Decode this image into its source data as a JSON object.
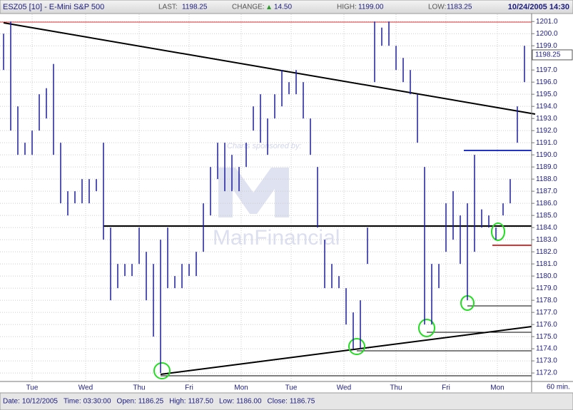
{
  "header": {
    "symbol": "ESZ05 [10] - E-Mini S&P 500",
    "last_label": "LAST:",
    "last": "1198.25",
    "change_label": "CHANGE:",
    "change": "14.50",
    "high_label": "HIGH:",
    "high": "1199.00",
    "low_label": "LOW:",
    "low": "1183.25",
    "datetime": "10/24/2005 14:30"
  },
  "watermark": {
    "line1": "Charts sponsored by:",
    "line2": "ManFinancial"
  },
  "chart_data": {
    "type": "ohlc",
    "color": "#1c1c9e",
    "interval": "60 min.",
    "grid": true,
    "x": [
      0,
      1,
      2,
      3,
      4,
      5,
      6,
      7,
      8,
      9,
      10,
      11,
      12,
      13,
      14,
      15,
      16,
      17,
      18,
      19,
      20,
      21,
      22,
      23,
      24,
      25,
      26,
      27,
      28,
      29,
      30,
      31,
      32,
      33,
      34,
      35,
      36,
      37,
      38,
      39,
      40,
      41,
      42,
      43,
      44,
      45,
      46,
      47,
      48,
      49,
      50,
      51,
      52,
      53,
      54,
      55,
      56,
      57,
      58,
      59,
      60,
      61,
      62,
      63,
      64,
      65,
      66,
      67,
      68,
      69,
      70,
      71,
      72,
      73
    ],
    "series": [
      {
        "name": "High",
        "values": [
          1200,
          1201,
          1194,
          1191,
          1192,
          1195,
          1195.5,
          1197.5,
          1191,
          1187,
          1187,
          1188,
          1188,
          1188,
          1191,
          1184,
          1181,
          1181,
          1181,
          1184,
          1182,
          1181,
          1183,
          1184,
          1180,
          1181,
          1181,
          1182,
          1186,
          1189,
          1191,
          1191,
          1190,
          1189,
          1191,
          1194,
          1195,
          1193,
          1195,
          1197,
          1196,
          1197,
          1196,
          1193,
          1189,
          1183,
          1181,
          1180,
          1179,
          1177,
          1178,
          1184,
          1201,
          1200.5,
          1201,
          1199,
          1198,
          1197,
          1195,
          1189,
          1181,
          1181,
          1186,
          1187,
          1185,
          1186,
          1190,
          1185.5,
          1185,
          1184,
          1186,
          1188,
          1194,
          1199
        ]
      },
      {
        "name": "Low",
        "values": [
          1197,
          1192,
          1190,
          1190,
          1190,
          1192,
          1193,
          1190,
          1186,
          1185,
          1186,
          1186,
          1186,
          1187,
          1183,
          1178,
          1179,
          1180,
          1180,
          1181,
          1178,
          1175,
          1172,
          1179,
          1179,
          1179,
          1180,
          1180,
          1182,
          1185,
          1188,
          1187,
          1187,
          1187,
          1189,
          1192,
          1191,
          1190,
          1193,
          1194,
          1195,
          1195,
          1193,
          1190,
          1184,
          1179,
          1179,
          1179,
          1176,
          1174,
          1174,
          1181,
          1196,
          1199,
          1199,
          1197,
          1196,
          1195,
          1191,
          1176,
          1176,
          1179,
          1182,
          1183,
          1181,
          1178,
          1182,
          1184,
          1184,
          1183,
          1185,
          1186,
          1191,
          1196
        ]
      }
    ],
    "xlim": [
      -0.5,
      74
    ],
    "xticks": [
      {
        "value": 4,
        "label": "Tue"
      },
      {
        "value": 11.5,
        "label": "Wed"
      },
      {
        "value": 19,
        "label": "Thu"
      },
      {
        "value": 26,
        "label": "Fri"
      },
      {
        "value": 33.3,
        "label": "Mon"
      },
      {
        "value": 40.3,
        "label": "Tue"
      },
      {
        "value": 47.7,
        "label": "Wed"
      },
      {
        "value": 55,
        "label": "Thu"
      },
      {
        "value": 62,
        "label": "Fri"
      },
      {
        "value": 69.2,
        "label": "Mon"
      }
    ],
    "ylim": [
      1171.3,
      1201.6
    ],
    "yticks": [
      {
        "value": 1172,
        "label": "1172.0"
      },
      {
        "value": 1173,
        "label": "1173.0"
      },
      {
        "value": 1174,
        "label": "1174.0"
      },
      {
        "value": 1175,
        "label": "1175.0"
      },
      {
        "value": 1176,
        "label": "1176.0"
      },
      {
        "value": 1177,
        "label": "1177.0"
      },
      {
        "value": 1178,
        "label": "1178.0"
      },
      {
        "value": 1179,
        "label": "1179.0"
      },
      {
        "value": 1180,
        "label": "1180.0"
      },
      {
        "value": 1181,
        "label": "1181.0"
      },
      {
        "value": 1182,
        "label": "1182.0"
      },
      {
        "value": 1183,
        "label": "1183.0"
      },
      {
        "value": 1184,
        "label": "1184.0"
      },
      {
        "value": 1185,
        "label": "1185.0"
      },
      {
        "value": 1186,
        "label": "1186.0"
      },
      {
        "value": 1187,
        "label": "1187.0"
      },
      {
        "value": 1188,
        "label": "1188.0"
      },
      {
        "value": 1189,
        "label": "1189.0"
      },
      {
        "value": 1190,
        "label": "1190.0"
      },
      {
        "value": 1191,
        "label": "1191.0"
      },
      {
        "value": 1192,
        "label": "1192.0"
      },
      {
        "value": 1193,
        "label": "1193.0"
      },
      {
        "value": 1194,
        "label": "1194.0"
      },
      {
        "value": 1195,
        "label": "1195.0"
      },
      {
        "value": 1196,
        "label": "1196.0"
      },
      {
        "value": 1197,
        "label": "1197.0"
      },
      {
        "value": 1198,
        "label": "1198.0"
      },
      {
        "value": 1199,
        "label": "1199.0"
      },
      {
        "value": 1200,
        "label": "1200.0"
      },
      {
        "value": 1201,
        "label": "1201.0"
      }
    ],
    "last_price": 1198.25
  },
  "footer": {
    "date_label": "Date:",
    "date": "10/12/2005",
    "time_label": "Time:",
    "time": "03:30:00",
    "open_label": "Open:",
    "open": "1186.25",
    "high_label": "High:",
    "high": "1187.50",
    "low_label": "Low:",
    "low": "1186.00",
    "close_label": "Close:",
    "close": "1186.75"
  }
}
